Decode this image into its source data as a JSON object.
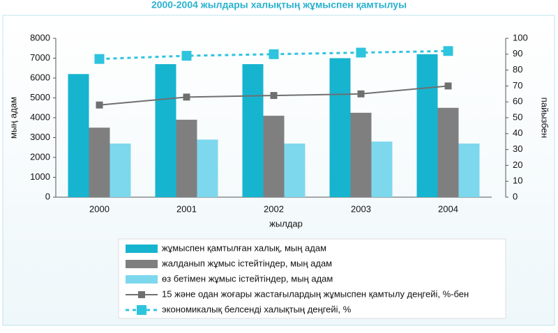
{
  "chart_data": {
    "type": "bar",
    "title": "2000-2004 жылдары халықтың жұмыспен қамтылуы",
    "y_label": "мың адам",
    "y2_label": "пайызбен",
    "x_label": "жылдар",
    "categories": [
      "2000",
      "2001",
      "2002",
      "2003",
      "2004"
    ],
    "series": [
      {
        "name": "жұмыспен қамтылған халық, мың адам",
        "type": "bar",
        "color": "#17b4d0",
        "values": [
          6200,
          6700,
          6700,
          7000,
          7200
        ]
      },
      {
        "name": "жалданып жұмыс істейтіндер, мың адам",
        "type": "bar",
        "color": "#7f7f7f",
        "values": [
          3500,
          3900,
          4100,
          4250,
          4500
        ]
      },
      {
        "name": "өз бетімен жұмыс істейтіндер, мың адам",
        "type": "bar",
        "color": "#7dd8ee",
        "values": [
          2700,
          2900,
          2700,
          2800,
          2700
        ]
      },
      {
        "name": "15 және одан жоғары жастағылардың жұмыспен қамтылу деңгейі,  %-бен",
        "type": "line",
        "axis": "y2",
        "color": "#6f6f6f",
        "dashed": false,
        "marker_size": 10,
        "values": [
          58,
          63,
          64,
          65,
          70
        ]
      },
      {
        "name": "экономикалық белсенді халықтың деңгейі, %",
        "type": "line",
        "axis": "y2",
        "color": "#2ec4dd",
        "dashed": true,
        "marker_size": 14,
        "values": [
          87,
          89,
          90,
          91,
          92
        ]
      }
    ],
    "ylim": [
      0,
      8000
    ],
    "yticks": [
      0,
      1000,
      2000,
      3000,
      4000,
      5000,
      6000,
      7000,
      8000
    ],
    "y2lim": [
      0,
      100
    ],
    "y2ticks": [
      0,
      10,
      20,
      30,
      40,
      50,
      60,
      70,
      80,
      90,
      100
    ],
    "legend": "bottom"
  }
}
